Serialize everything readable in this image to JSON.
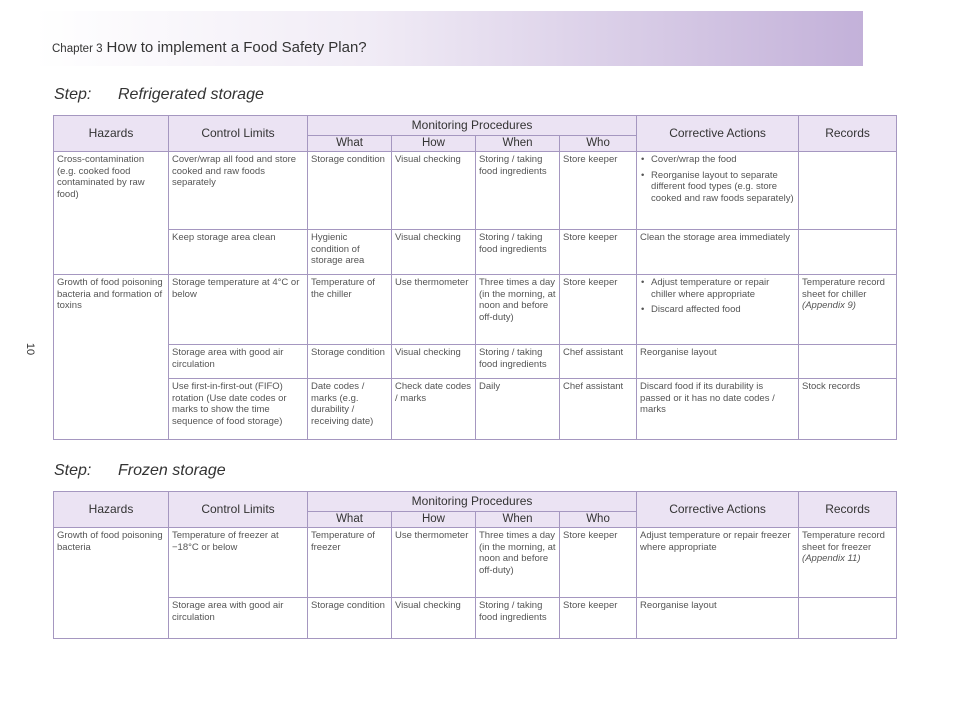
{
  "header": {
    "chapter": "Chapter 3",
    "title": "How to implement a Food Safety Plan?"
  },
  "page_number": "10",
  "headers": {
    "hazards": "Hazards",
    "control_limits": "Control Limits",
    "monitoring": "Monitoring Procedures",
    "what": "What",
    "how": "How",
    "when": "When",
    "who": "Who",
    "corrective": "Corrective Actions",
    "records": "Records"
  },
  "section1": {
    "step_label": "Step:",
    "step_title": "Refrigerated storage",
    "hazard1": "Cross-contamination (e.g. cooked food contaminated by raw food)",
    "hazard2": "Growth of food poisoning bacteria and formation of toxins",
    "rows": [
      {
        "control": "Cover/wrap all food and store cooked and raw foods separately",
        "what": "Storage condition",
        "how": "Visual checking",
        "when": "Storing / taking food ingredients",
        "who": "Store keeper",
        "corrective_items": [
          "Cover/wrap the food",
          "Reorganise layout to separate different food types (e.g. store cooked and raw foods separately)"
        ],
        "records": ""
      },
      {
        "control": "Keep storage area clean",
        "what": "Hygienic condition of storage area",
        "how": "Visual checking",
        "when": "Storing / taking food ingredients",
        "who": "Store keeper",
        "corrective": "Clean the storage area immediately",
        "records": ""
      },
      {
        "control": "Storage temperature at 4°C or below",
        "what": "Temperature of the chiller",
        "how": "Use thermometer",
        "when": "Three times a day (in the morning, at noon and before off-duty)",
        "who": "Store keeper",
        "corrective_items": [
          "Adjust temperature or repair chiller where appropriate",
          "Discard affected food"
        ],
        "records": "Temperature record sheet for chiller",
        "records_ref": "(Appendix 9)"
      },
      {
        "control": "Storage area with good air circulation",
        "what": "Storage condition",
        "how": "Visual checking",
        "when": "Storing / taking food ingredients",
        "who": "Chef assistant",
        "corrective": "Reorganise layout",
        "records": ""
      },
      {
        "control": "Use first-in-first-out (FIFO) rotation (Use date codes or marks to show the time sequence of food storage)",
        "what": "Date codes / marks (e.g. durability / receiving date)",
        "how": "Check date codes / marks",
        "when": "Daily",
        "who": "Chef assistant",
        "corrective": "Discard food if its durability is passed or it has no date codes / marks",
        "records": "Stock records"
      }
    ]
  },
  "section2": {
    "step_label": "Step:",
    "step_title": "Frozen storage",
    "hazard1": "Growth of food poisoning bacteria",
    "rows": [
      {
        "control": "Temperature of freezer at −18°C or below",
        "what": "Temperature of freezer",
        "how": "Use thermometer",
        "when": "Three times a day (in the morning, at noon and before off-duty)",
        "who": "Store keeper",
        "corrective": "Adjust temperature or repair freezer where appropriate",
        "records": "Temperature record sheet for freezer",
        "records_ref": "(Appendix 11)"
      },
      {
        "control": "Storage area with good air circulation",
        "what": "Storage condition",
        "how": "Visual checking",
        "when": "Storing / taking food ingredients",
        "who": "Store keeper",
        "corrective": "Reorganise layout",
        "records": ""
      }
    ]
  }
}
